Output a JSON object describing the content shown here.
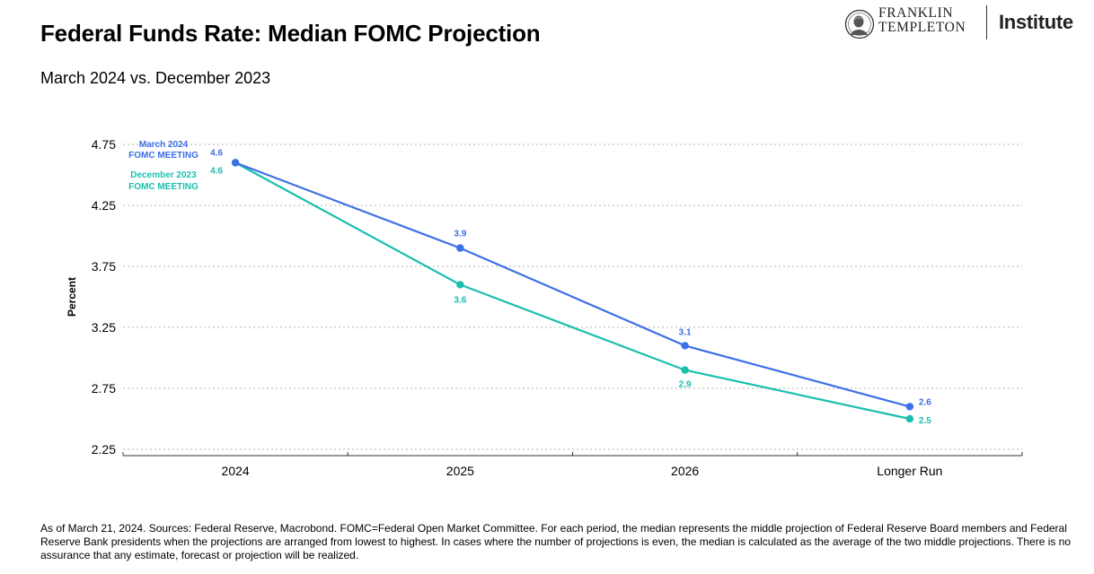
{
  "header": {
    "title": "Federal Funds Rate: Median FOMC Projection",
    "subtitle": "March 2024 vs. December 2023"
  },
  "logo": {
    "brand_line1": "FRANKLIN",
    "brand_line2": "TEMPLETON",
    "institute": "Institute"
  },
  "chart_data": {
    "type": "line",
    "title": "Federal Funds Rate: Median FOMC Projection",
    "subtitle": "March 2024 vs. December 2023",
    "xlabel": "",
    "ylabel": "Percent",
    "categories": [
      "2024",
      "2025",
      "2026",
      "Longer Run"
    ],
    "ylim": [
      2.25,
      4.75
    ],
    "yticks": [
      "4.75",
      "4.25",
      "3.75",
      "3.25",
      "2.75",
      "2.25"
    ],
    "grid": true,
    "series": [
      {
        "name_line1": "March 2024",
        "name_line2": "FOMC MEETING",
        "color": "#3d6fe6",
        "values": [
          4.6,
          3.9,
          3.1,
          2.6
        ],
        "labels": [
          "4.6",
          "3.9",
          "3.1",
          "2.6"
        ]
      },
      {
        "name_line1": "December 2023",
        "name_line2": "FOMC MEETING",
        "color": "#1abfae",
        "values": [
          4.6,
          3.6,
          2.9,
          2.5
        ],
        "labels": [
          "4.6",
          "3.6",
          "2.9",
          "2.5"
        ]
      }
    ]
  },
  "footnote": "As of March 21, 2024. Sources: Federal Reserve, Macrobond. FOMC=Federal Open Market Committee. For each period, the median represents the middle projection of Federal Reserve Board members and Federal Reserve Bank presidents when the projections are arranged from lowest to highest. In cases where the number of projections is even, the median is calculated as the average of the two middle projections. There is no assurance that any estimate, forecast or projection will be realized."
}
